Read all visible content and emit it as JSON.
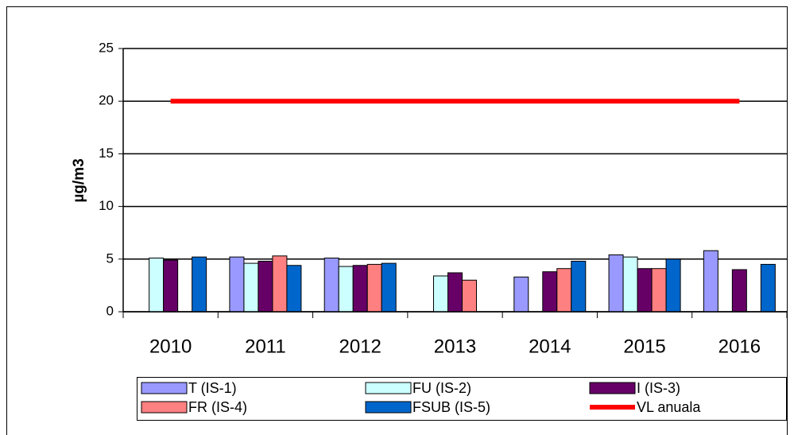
{
  "chart_data": {
    "type": "bar",
    "ylabel": "µg/m3",
    "categories": [
      "2010",
      "2011",
      "2012",
      "2013",
      "2014",
      "2015",
      "2016"
    ],
    "series": [
      {
        "name": "T (IS-1)",
        "color": "#9999ff",
        "values": [
          null,
          5.2,
          5.1,
          null,
          3.3,
          5.4,
          5.8
        ]
      },
      {
        "name": "FU (IS-2)",
        "color": "#ccffff",
        "values": [
          5.1,
          4.6,
          4.3,
          3.4,
          null,
          5.2,
          null
        ]
      },
      {
        "name": "I (IS-3)",
        "color": "#660066",
        "values": [
          4.9,
          4.8,
          4.4,
          3.7,
          3.8,
          4.1,
          4.0
        ]
      },
      {
        "name": "FR (IS-4)",
        "color": "#ff8080",
        "values": [
          null,
          5.3,
          4.5,
          3.0,
          4.1,
          4.1,
          null
        ]
      },
      {
        "name": "FSUB (IS-5)",
        "color": "#0066cc",
        "values": [
          5.2,
          4.4,
          4.6,
          null,
          4.8,
          5.0,
          4.5
        ]
      },
      {
        "name": "VL anuala",
        "color": "#ff0000",
        "type": "line",
        "values": [
          20,
          20,
          20,
          20,
          20,
          20,
          20
        ]
      }
    ],
    "ylim": [
      0,
      25
    ],
    "yticks": [
      0,
      5,
      10,
      15,
      20,
      25
    ],
    "grid": true,
    "legend": "bottom"
  }
}
